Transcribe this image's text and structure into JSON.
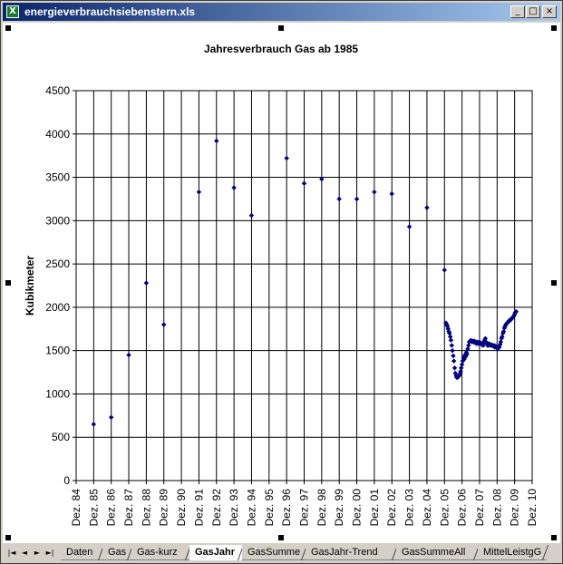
{
  "window": {
    "title": "energieverbrauchsiebenstern.xls",
    "app_icon": "excel-icon",
    "buttons": {
      "minimize": "_",
      "maximize": "□",
      "close": "×"
    }
  },
  "sheet_tabs": {
    "items": [
      "Daten",
      "Gas",
      "Gas-kurz",
      "GasJahr",
      "GasSumme",
      "GasJahr-Trend",
      "GasSummeAll",
      "MittelLeistgG"
    ],
    "active": "GasJahr",
    "nav": [
      "|◄",
      "◄",
      "►",
      "►|"
    ]
  },
  "chart_data": {
    "type": "scatter",
    "title": "Jahresverbrauch Gas ab 1985",
    "ylabel": "Kubikmeter",
    "ylim": [
      0,
      4500
    ],
    "yticks": [
      0,
      500,
      1000,
      1500,
      2000,
      2500,
      3000,
      3500,
      4000,
      4500
    ],
    "xlim": [
      "1984-12-01",
      "2010-12-01"
    ],
    "xticks": [
      "Dez. 84",
      "Dez. 85",
      "Dez. 86",
      "Dez. 87",
      "Dez. 88",
      "Dez. 89",
      "Dez. 90",
      "Dez. 91",
      "Dez. 92",
      "Dez. 93",
      "Dez. 94",
      "Dez. 95",
      "Dez. 96",
      "Dez. 97",
      "Dez. 98",
      "Dez. 99",
      "Dez. 00",
      "Dez. 01",
      "Dez. 02",
      "Dez. 03",
      "Dez. 04",
      "Dez. 05",
      "Dez. 06",
      "Dez. 07",
      "Dez. 08",
      "Dez. 09",
      "Dez. 10"
    ],
    "grid": true,
    "marker_color": "#000080",
    "series": [
      {
        "points": [
          [
            "1985-12-01",
            650
          ],
          [
            "1986-12-01",
            730
          ],
          [
            "1987-12-01",
            1450
          ],
          [
            "1988-12-01",
            2280
          ],
          [
            "1989-12-01",
            1800
          ],
          [
            "1991-12-01",
            3330
          ],
          [
            "1992-12-01",
            3920
          ],
          [
            "1993-12-01",
            3380
          ],
          [
            "1994-12-01",
            3060
          ],
          [
            "1996-12-01",
            3720
          ],
          [
            "1997-12-01",
            3430
          ],
          [
            "1998-12-01",
            3480
          ],
          [
            "1999-12-01",
            3250
          ],
          [
            "2000-12-01",
            3250
          ],
          [
            "2001-12-01",
            3330
          ],
          [
            "2002-12-01",
            3310
          ],
          [
            "2003-12-01",
            2930
          ],
          [
            "2004-12-01",
            3150
          ],
          [
            "2005-12-01",
            2430
          ],
          [
            "2006-01-01",
            1820
          ],
          [
            "2006-01-15",
            1800
          ],
          [
            "2006-02-01",
            1780
          ],
          [
            "2006-02-15",
            1750
          ],
          [
            "2006-03-01",
            1720
          ],
          [
            "2006-03-15",
            1700
          ],
          [
            "2006-04-01",
            1660
          ],
          [
            "2006-04-15",
            1620
          ],
          [
            "2006-05-01",
            1560
          ],
          [
            "2006-05-15",
            1500
          ],
          [
            "2006-06-01",
            1440
          ],
          [
            "2006-06-15",
            1380
          ],
          [
            "2006-07-01",
            1300
          ],
          [
            "2006-07-15",
            1240
          ],
          [
            "2006-08-01",
            1210
          ],
          [
            "2006-08-15",
            1190
          ],
          [
            "2006-09-01",
            1190
          ],
          [
            "2006-09-15",
            1200
          ],
          [
            "2006-10-01",
            1210
          ],
          [
            "2006-10-15",
            1230
          ],
          [
            "2006-11-01",
            1260
          ],
          [
            "2006-11-15",
            1300
          ],
          [
            "2006-12-01",
            1340
          ],
          [
            "2006-12-15",
            1380
          ],
          [
            "2007-01-01",
            1420
          ],
          [
            "2007-01-15",
            1400
          ],
          [
            "2007-02-01",
            1450
          ],
          [
            "2007-02-15",
            1430
          ],
          [
            "2007-03-01",
            1480
          ],
          [
            "2007-03-15",
            1460
          ],
          [
            "2007-04-01",
            1520
          ],
          [
            "2007-04-15",
            1560
          ],
          [
            "2007-05-01",
            1600
          ],
          [
            "2007-05-15",
            1610
          ],
          [
            "2007-06-01",
            1620
          ],
          [
            "2007-06-15",
            1610
          ],
          [
            "2007-07-01",
            1600
          ],
          [
            "2007-07-15",
            1610
          ],
          [
            "2007-08-01",
            1600
          ],
          [
            "2007-08-15",
            1610
          ],
          [
            "2007-09-01",
            1590
          ],
          [
            "2007-09-15",
            1600
          ],
          [
            "2007-10-01",
            1580
          ],
          [
            "2007-10-15",
            1600
          ],
          [
            "2007-11-01",
            1590
          ],
          [
            "2007-11-15",
            1580
          ],
          [
            "2007-12-01",
            1600
          ],
          [
            "2007-12-15",
            1590
          ],
          [
            "2008-01-01",
            1580
          ],
          [
            "2008-01-15",
            1570
          ],
          [
            "2008-02-01",
            1580
          ],
          [
            "2008-02-15",
            1560
          ],
          [
            "2008-03-01",
            1600
          ],
          [
            "2008-03-15",
            1620
          ],
          [
            "2008-04-01",
            1640
          ],
          [
            "2008-04-15",
            1600
          ],
          [
            "2008-05-01",
            1580
          ],
          [
            "2008-05-15",
            1560
          ],
          [
            "2008-06-01",
            1560
          ],
          [
            "2008-06-15",
            1580
          ],
          [
            "2008-07-01",
            1570
          ],
          [
            "2008-07-15",
            1560
          ],
          [
            "2008-08-01",
            1570
          ],
          [
            "2008-08-15",
            1560
          ],
          [
            "2008-09-01",
            1560
          ],
          [
            "2008-09-15",
            1550
          ],
          [
            "2008-10-01",
            1560
          ],
          [
            "2008-10-15",
            1540
          ],
          [
            "2008-11-01",
            1550
          ],
          [
            "2008-11-15",
            1540
          ],
          [
            "2008-12-01",
            1540
          ],
          [
            "2008-12-15",
            1520
          ],
          [
            "2009-01-01",
            1530
          ],
          [
            "2009-01-15",
            1540
          ],
          [
            "2009-02-01",
            1570
          ],
          [
            "2009-02-15",
            1600
          ],
          [
            "2009-03-01",
            1640
          ],
          [
            "2009-03-15",
            1660
          ],
          [
            "2009-04-01",
            1700
          ],
          [
            "2009-04-15",
            1720
          ],
          [
            "2009-05-01",
            1760
          ],
          [
            "2009-05-15",
            1780
          ],
          [
            "2009-06-01",
            1800
          ],
          [
            "2009-06-15",
            1810
          ],
          [
            "2009-07-01",
            1820
          ],
          [
            "2009-07-15",
            1830
          ],
          [
            "2009-08-01",
            1840
          ],
          [
            "2009-08-15",
            1850
          ],
          [
            "2009-09-01",
            1850
          ],
          [
            "2009-09-15",
            1860
          ],
          [
            "2009-10-01",
            1870
          ],
          [
            "2009-10-15",
            1880
          ],
          [
            "2009-11-01",
            1890
          ],
          [
            "2009-11-15",
            1900
          ],
          [
            "2009-12-01",
            1920
          ],
          [
            "2009-12-15",
            1940
          ],
          [
            "2010-01-01",
            1950
          ]
        ]
      }
    ]
  }
}
